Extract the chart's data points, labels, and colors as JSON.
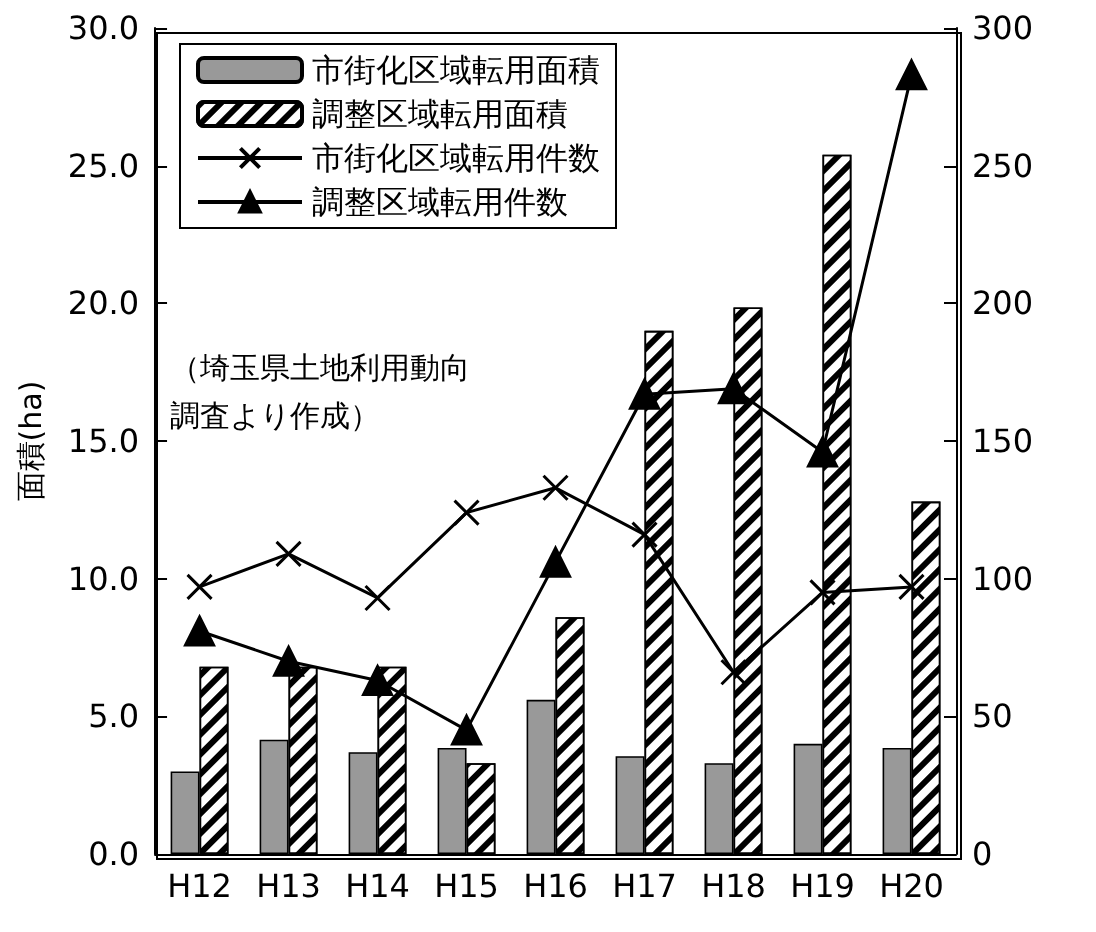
{
  "chart_data": {
    "type": "bar",
    "ylabel": "面積(ha)",
    "categories": [
      "H12",
      "H13",
      "H14",
      "H15",
      "H16",
      "H17",
      "H18",
      "H19",
      "H20"
    ],
    "series": [
      {
        "name": "市街化区域転用面積",
        "color": "#999999",
        "values": [
          3.0,
          4.15,
          3.7,
          3.85,
          5.6,
          3.55,
          3.3,
          4.0,
          3.85
        ]
      },
      {
        "name": "調整区域転用面積",
        "color": "#ffffff",
        "values": [
          6.8,
          6.8,
          6.8,
          3.3,
          8.6,
          19.0,
          19.85,
          25.4,
          12.8
        ]
      },
      {
        "name": "市街化区域転用件数",
        "type": "line",
        "axis": "y2",
        "color": "#000000",
        "marker": "cross",
        "values": [
          97,
          109,
          93,
          124,
          133,
          116,
          66,
          95,
          97
        ]
      },
      {
        "name": "調整区域転用件数",
        "type": "line",
        "axis": "y2",
        "color": "#000000",
        "marker": "triangle",
        "values": [
          81,
          70,
          63,
          45,
          106,
          167,
          169,
          146,
          283
        ]
      }
    ],
    "ylim": [
      0,
      30
    ],
    "yticks": [
      {
        "value": 0,
        "label": "0.0"
      },
      {
        "value": 5,
        "label": "5.0"
      },
      {
        "value": 10,
        "label": "10.0"
      },
      {
        "value": 15,
        "label": "15.0"
      },
      {
        "value": 20,
        "label": "20.0"
      },
      {
        "value": 25,
        "label": "25.0"
      },
      {
        "value": 30,
        "label": "30.0"
      }
    ],
    "y2lim": [
      0,
      300
    ],
    "y2ticks": [
      0,
      50,
      100,
      150,
      200,
      250,
      300
    ],
    "annotations": [
      "（埼玉県土地利用動向調査より作成）"
    ],
    "legend": "top left",
    "grid": false
  }
}
